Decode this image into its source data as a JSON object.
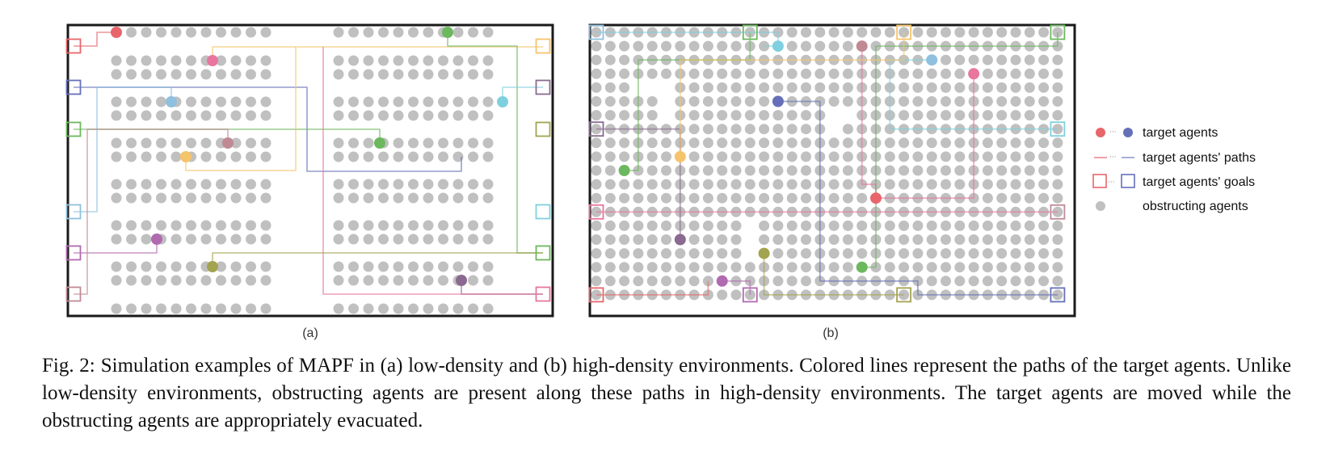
{
  "figure": {
    "subfigures": [
      {
        "label": "(a)",
        "env": "low-density"
      },
      {
        "label": "(b)",
        "env": "high-density"
      }
    ],
    "legend": [
      {
        "kind": "agent",
        "label": "target agents"
      },
      {
        "kind": "path",
        "label": "target agents' paths"
      },
      {
        "kind": "goal",
        "label": "target agents' goals"
      },
      {
        "kind": "obstacle",
        "label": "obstructing agents"
      }
    ],
    "colors": {
      "obstructing": "#c0c0c0",
      "frame": "#1a1a1a",
      "red": "#e8666b",
      "blue": "#6670b8",
      "pink": "#e8769e",
      "purple": "#b06ab0",
      "green": "#6cb85e",
      "orange": "#f5c46a",
      "light_blue": "#8fc0de",
      "cyan": "#7fd0de",
      "olive": "#a3a350",
      "dark_purple": "#8a6a90",
      "mauve": "#c08a95"
    }
  },
  "caption": {
    "label": "Fig. 2:",
    "text": "Simulation examples of MAPF in (a) low-density and (b) high-density environments. Colored lines represent the paths of the target agents. Unlike low-density environments, obstructing agents are present along these paths in high-density environments. The target agents are moved while the obstructing agents are appropriately evacuated."
  }
}
